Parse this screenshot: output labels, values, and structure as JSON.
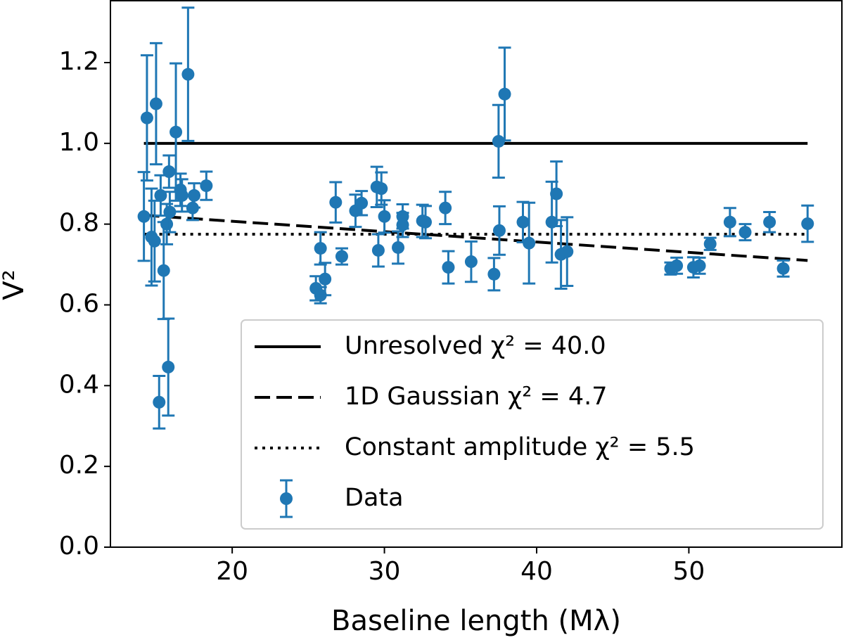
{
  "chart_data": {
    "type": "scatter",
    "xlabel": "Baseline length (Mλ)",
    "ylabel": "V²",
    "xlim": [
      12.0,
      60.1
    ],
    "ylim": [
      0,
      1.355
    ],
    "xticks": [
      20,
      30,
      40,
      50
    ],
    "yticks": [
      {
        "value": 0,
        "label": "0.0"
      },
      0.2,
      0.4,
      0.6,
      0.8,
      {
        "value": 1,
        "label": "1.0"
      },
      1.2
    ],
    "legend": "lower right",
    "series": [
      {
        "name": "Unresolved χ² = 40.0",
        "type": "line",
        "linestyle": "solid",
        "color": "#000000",
        "x": [
          14.2,
          57.8
        ],
        "values": [
          1.0,
          1.0
        ]
      },
      {
        "name": "1D Gaussian χ² = 4.7",
        "type": "line",
        "linestyle": "dashed",
        "color": "#000000",
        "x": [
          14.2,
          57.8
        ],
        "values": [
          0.822,
          0.71
        ]
      },
      {
        "name": "Constant amplitude χ² = 5.5",
        "type": "line",
        "linestyle": "dotted",
        "color": "#000000",
        "x": [
          14.2,
          57.8
        ],
        "values": [
          0.775,
          0.775
        ]
      },
      {
        "name": "Data",
        "type": "errorbar",
        "color": "#1f77b4",
        "x": [
          14.2,
          14.4,
          14.7,
          15.0,
          14.9,
          15.2,
          15.3,
          15.5,
          15.7,
          15.8,
          15.85,
          15.9,
          16.3,
          16.6,
          16.7,
          17.1,
          17.4,
          17.5,
          18.3,
          25.5,
          25.8,
          25.8,
          26.1,
          26.8,
          27.2,
          28.1,
          28.5,
          29.5,
          29.8,
          29.6,
          30.0,
          30.9,
          31.2,
          31.2,
          32.5,
          32.7,
          34.0,
          34.2,
          35.7,
          37.2,
          37.5,
          37.55,
          37.9,
          39.1,
          39.5,
          41.0,
          41.3,
          41.6,
          42.0,
          48.8,
          49.2,
          50.3,
          50.7,
          51.4,
          52.7,
          53.7,
          55.3,
          56.2,
          57.8
        ],
        "values": [
          0.819,
          1.063,
          0.768,
          1.098,
          0.758,
          0.359,
          0.871,
          0.685,
          0.8,
          0.446,
          0.93,
          0.83,
          1.028,
          0.885,
          0.871,
          1.171,
          0.84,
          0.871,
          0.895,
          0.641,
          0.624,
          0.74,
          0.664,
          0.854,
          0.72,
          0.833,
          0.852,
          0.892,
          0.888,
          0.735,
          0.819,
          0.742,
          0.819,
          0.798,
          0.808,
          0.805,
          0.84,
          0.693,
          0.707,
          0.676,
          1.005,
          0.784,
          1.122,
          0.805,
          0.753,
          0.805,
          0.875,
          0.725,
          0.732,
          0.69,
          0.697,
          0.693,
          0.697,
          0.751,
          0.805,
          0.78,
          0.805,
          0.69,
          0.801
        ],
        "errors": [
          0.11,
          0.155,
          0.12,
          0.15,
          0.1,
          0.065,
          0.05,
          0.12,
          0.05,
          0.12,
          0.04,
          0.05,
          0.17,
          0.04,
          0.04,
          0.165,
          0.03,
          0.03,
          0.035,
          0.03,
          0.02,
          0.04,
          0.04,
          0.05,
          0.02,
          0.04,
          0.03,
          0.05,
          0.04,
          0.04,
          0.04,
          0.04,
          0.03,
          0.03,
          0.04,
          0.04,
          0.04,
          0.04,
          0.05,
          0.04,
          0.09,
          0.06,
          0.115,
          0.05,
          0.1,
          0.1,
          0.08,
          0.085,
          0.085,
          0.015,
          0.02,
          0.025,
          0.02,
          0.015,
          0.035,
          0.02,
          0.025,
          0.02,
          0.045
        ]
      }
    ]
  }
}
